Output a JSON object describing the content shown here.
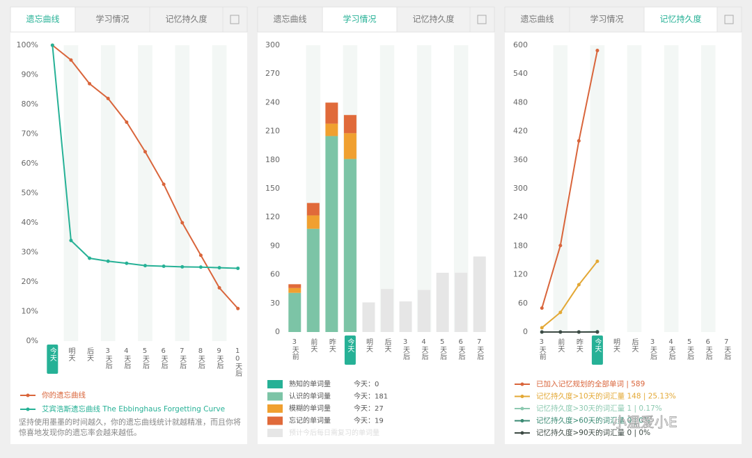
{
  "tabs": [
    "遗忘曲线",
    "学习情况",
    "记忆持久度"
  ],
  "note": "坚持使用墨墨的时间越久，你的遗忘曲线统计就越精准，而且你将惊喜地发现你的遗忘率会越来越低。",
  "watermark": "小温爱小E",
  "chart_data": [
    {
      "type": "line",
      "active_tab": 0,
      "highlight": 0,
      "categories": [
        "今天",
        "明天",
        "后天",
        "3天后",
        "4天后",
        "5天后",
        "6天后",
        "7天后",
        "8天后",
        "9天后",
        "10天后"
      ],
      "ylim": [
        0,
        100
      ],
      "yticks": [
        {
          "value": 0,
          "label": "0%"
        },
        {
          "value": 10,
          "label": "10%"
        },
        {
          "value": 20,
          "label": "20%"
        },
        {
          "value": 30,
          "label": "30%"
        },
        {
          "value": 40,
          "label": "40%"
        },
        {
          "value": 50,
          "label": "50%"
        },
        {
          "value": 60,
          "label": "60%"
        },
        {
          "value": 70,
          "label": "70%"
        },
        {
          "value": 80,
          "label": "80%"
        },
        {
          "value": 90,
          "label": "90%"
        },
        {
          "value": 100,
          "label": "100%"
        }
      ],
      "series": [
        {
          "name": "你的遗忘曲线",
          "color": "#d9653b",
          "values": [
            100,
            95,
            87,
            82,
            74,
            64,
            53,
            40,
            29,
            18,
            11
          ]
        },
        {
          "name": "艾宾浩斯遗忘曲线 The Ebbinghaus Forgetting Curve",
          "color": "#26b196",
          "values": [
            100,
            34,
            28,
            27,
            26.3,
            25.5,
            25.3,
            25.1,
            25,
            24.8,
            24.6
          ]
        }
      ]
    },
    {
      "type": "stacked_bar",
      "active_tab": 1,
      "highlight": 3,
      "categories": [
        "3天前",
        "前天",
        "昨天",
        "今天",
        "明天",
        "后天",
        "3天后",
        "4天后",
        "5天后",
        "6天后",
        "7天后"
      ],
      "ylim": [
        0,
        300
      ],
      "yticks": [
        0,
        30,
        60,
        90,
        120,
        150,
        180,
        210,
        240,
        270,
        300
      ],
      "series": [
        {
          "name": "熟知的单词量",
          "color": "#26b196",
          "today_label": "今天：0",
          "values": [
            0,
            0,
            0,
            0,
            null,
            null,
            null,
            null,
            null,
            null,
            null
          ]
        },
        {
          "name": "认识的单词量",
          "color": "#7cc4a6",
          "today_label": "今天：181",
          "values": [
            41,
            108,
            205,
            181,
            null,
            null,
            null,
            null,
            null,
            null,
            null
          ]
        },
        {
          "name": "模糊的单词量",
          "color": "#f0a030",
          "today_label": "今天：27",
          "values": [
            5,
            14,
            13,
            27,
            null,
            null,
            null,
            null,
            null,
            null,
            null
          ]
        },
        {
          "name": "忘记的单词量",
          "color": "#e06a3a",
          "today_label": "今天：19",
          "values": [
            4,
            13,
            22,
            19,
            null,
            null,
            null,
            null,
            null,
            null,
            null
          ]
        },
        {
          "name": "预计今后每日需复习的单词量",
          "color": "#e6e6e6",
          "values": [
            null,
            null,
            null,
            null,
            31,
            45,
            32,
            44,
            62,
            62,
            79
          ]
        }
      ]
    },
    {
      "type": "line",
      "active_tab": 2,
      "highlight": 3,
      "categories": [
        "3天前",
        "前天",
        "昨天",
        "今天",
        "明天",
        "后天",
        "3天后",
        "4天后",
        "5天后",
        "6天后",
        "7天后"
      ],
      "ylim": [
        0,
        600
      ],
      "yticks": [
        0,
        60,
        120,
        180,
        240,
        300,
        360,
        420,
        480,
        540,
        600
      ],
      "series": [
        {
          "name": "已加入记忆规划的全部单词 | 589",
          "color": "#d9653b",
          "values": [
            50,
            181,
            400,
            589,
            null,
            null,
            null,
            null,
            null,
            null,
            null
          ]
        },
        {
          "name": "记忆持久度>10天的词汇量 148 | 25.13%",
          "color": "#e3a835",
          "values": [
            9,
            41,
            99,
            148,
            null,
            null,
            null,
            null,
            null,
            null,
            null
          ]
        },
        {
          "name": "记忆持久度>30天的词汇量 1 | 0.17%",
          "color": "#8cc9b0",
          "values": [
            0,
            0,
            0,
            1,
            null,
            null,
            null,
            null,
            null,
            null,
            null
          ]
        },
        {
          "name": "记忆持久度>60天的词汇量 0 | 0%",
          "color": "#3a8a73",
          "values": [
            0,
            0,
            0,
            0,
            null,
            null,
            null,
            null,
            null,
            null,
            null
          ]
        },
        {
          "name": "记忆持久度>90天的词汇量 0 | 0%",
          "color": "#3d4a44",
          "values": [
            0,
            0,
            0,
            0,
            null,
            null,
            null,
            null,
            null,
            null,
            null
          ]
        }
      ]
    }
  ]
}
